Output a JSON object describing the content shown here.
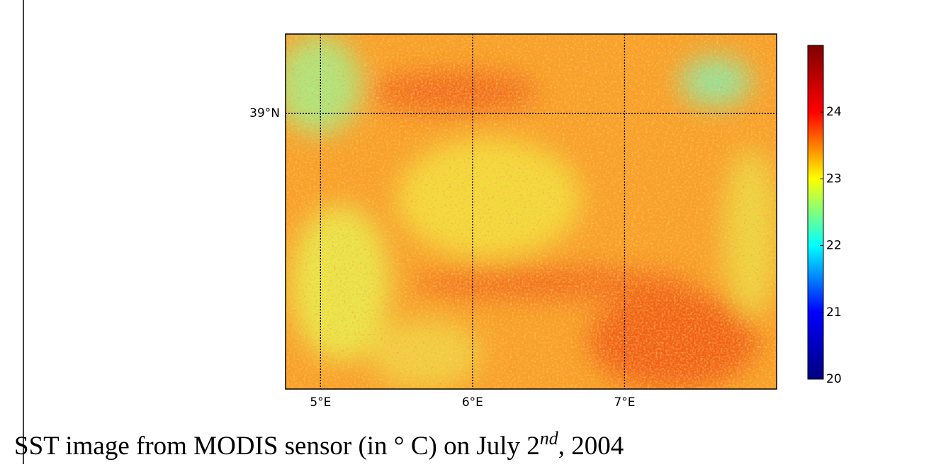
{
  "chart_data": {
    "type": "map",
    "xlim": [
      4.77,
      8.0
    ],
    "xticks": [
      {
        "value": 5,
        "label": "5°E"
      },
      {
        "value": 6,
        "label": "6°E"
      },
      {
        "value": 7,
        "label": "7°E"
      }
    ],
    "ylim": [
      37.96,
      39.3
    ],
    "yticks": [
      {
        "value": 39,
        "label": "39°N"
      }
    ],
    "grid": true,
    "colorbar": {
      "lim": [
        20,
        25
      ],
      "ticks": [
        20,
        21,
        22,
        23,
        24
      ],
      "colormap": [
        "#00007f",
        "#0000ff",
        "#00ffff",
        "#ffff00",
        "#ff0000",
        "#7f0000"
      ]
    }
  },
  "caption": {
    "before": "SST image from MODIS sensor (in ° C) on July 2",
    "superscript": "nd",
    "after": ", 2004"
  }
}
